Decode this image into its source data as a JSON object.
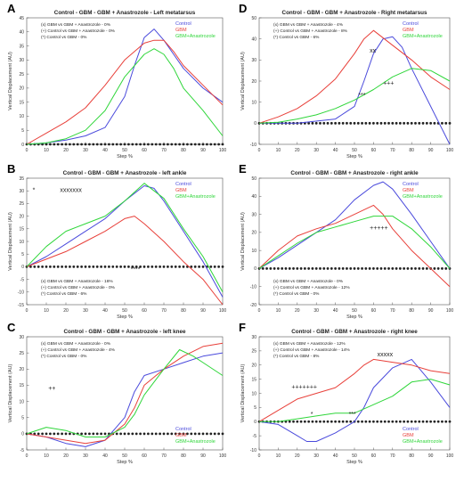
{
  "colors": {
    "Control": "#4a4adc",
    "GBM": "#e8403a",
    "GBM+Anastrozole": "#2fd63a",
    "axis": "#222222",
    "sig": "#222222"
  },
  "chart_data": [
    {
      "panel_letter": "A",
      "type": "line",
      "title": "Control - GBM - GBM + Anastrozole - Left metatarsus",
      "xlabel": "Step %",
      "ylabel": "Vertical Displacement (AU)",
      "xlim": [
        0,
        100
      ],
      "ylim": [
        0,
        45
      ],
      "xticks": [
        0,
        10,
        20,
        30,
        40,
        50,
        60,
        70,
        80,
        90,
        100
      ],
      "yticks": [
        0,
        5,
        10,
        15,
        20,
        25,
        30,
        35,
        40,
        45
      ],
      "legend_position": "top-right",
      "legend": [
        "Control",
        "GBM",
        "GBM+Anastrozole"
      ],
      "stats": [
        "(x) GBM vs GBM + Anastrozole - 0%",
        "(+) Control vs GBM + Anastrozole - 0%",
        "(*) Control vs GBM - 0%"
      ],
      "stats_position": "top-left",
      "series": [
        {
          "name": "Control",
          "x": [
            0,
            10,
            20,
            30,
            40,
            50,
            55,
            60,
            65,
            70,
            75,
            80,
            90,
            100
          ],
          "y": [
            0,
            0.5,
            1.5,
            3,
            6,
            17,
            28,
            38,
            41,
            37,
            32,
            27,
            20,
            15
          ]
        },
        {
          "name": "GBM",
          "x": [
            0,
            10,
            20,
            30,
            40,
            50,
            60,
            65,
            70,
            75,
            80,
            90,
            100
          ],
          "y": [
            0,
            4,
            8,
            13,
            21,
            30,
            36,
            37,
            37,
            33,
            28,
            21,
            14
          ]
        },
        {
          "name": "GBM+Anastrozole",
          "x": [
            0,
            10,
            20,
            30,
            40,
            50,
            60,
            65,
            70,
            75,
            80,
            90,
            100
          ],
          "y": [
            0,
            0.5,
            2,
            5,
            12,
            24,
            32,
            34,
            32,
            27,
            20,
            12,
            3
          ]
        }
      ],
      "annotations": [],
      "sig_row": 0
    },
    {
      "panel_letter": "B",
      "type": "line",
      "title": "Control - GBM - GBM + Anastrozole - left ankle",
      "xlabel": "Step %",
      "ylabel": "Vertical Displacement (AU)",
      "xlim": [
        0,
        100
      ],
      "ylim": [
        -15,
        35
      ],
      "xticks": [
        0,
        10,
        20,
        30,
        40,
        50,
        60,
        70,
        80,
        90,
        100
      ],
      "yticks": [
        -15,
        -10,
        -5,
        0,
        5,
        10,
        15,
        20,
        25,
        30,
        35
      ],
      "legend_position": "top-right",
      "legend": [
        "Control",
        "GBM",
        "GBM+Anastrozole"
      ],
      "stats": [
        "(x) GBM vs GBM + Anastrozole - 16%",
        "(+) Control vs GBM + Anastrozole - 0%",
        "(*) Control vs GBM - 6%"
      ],
      "stats_position": "bottom-left",
      "series": [
        {
          "name": "Control",
          "x": [
            0,
            10,
            20,
            30,
            40,
            50,
            60,
            65,
            70,
            80,
            90,
            100
          ],
          "y": [
            0,
            4,
            9,
            14,
            19,
            26,
            32,
            31,
            26,
            14,
            2,
            -12
          ]
        },
        {
          "name": "GBM",
          "x": [
            0,
            10,
            20,
            30,
            40,
            50,
            55,
            60,
            70,
            80,
            90,
            100
          ],
          "y": [
            0,
            3,
            6,
            10,
            14,
            19,
            20,
            17,
            10,
            2,
            -5,
            -15
          ]
        },
        {
          "name": "GBM+Anastrozole",
          "x": [
            0,
            10,
            20,
            30,
            40,
            50,
            60,
            70,
            80,
            90,
            100
          ],
          "y": [
            0,
            8,
            14,
            17,
            20,
            26,
            33,
            27,
            15,
            4,
            -10
          ]
        }
      ],
      "annotations": [
        {
          "text": "*",
          "x": 3,
          "y": 29.5
        },
        {
          "text": "xxxxxxx",
          "x": 17,
          "y": 29.5
        },
        {
          "text": "****",
          "x": 53,
          "y": -1.8
        }
      ],
      "sig_row": 0
    },
    {
      "panel_letter": "C",
      "type": "line",
      "title": "Control - GBM - GBM + Anastrozole - left knee",
      "xlabel": "Step %",
      "ylabel": "Vertical Displacement (AU)",
      "xlim": [
        0,
        100
      ],
      "ylim": [
        -5,
        30
      ],
      "xticks": [
        0,
        10,
        20,
        30,
        40,
        50,
        60,
        70,
        80,
        90,
        100
      ],
      "yticks": [
        -5,
        0,
        5,
        10,
        15,
        20,
        25,
        30
      ],
      "legend_position": "bottom-right",
      "legend": [
        "Control",
        "GBM",
        "GBM+Anastrozole"
      ],
      "stats": [
        "(x) GBM vs GBM + Anastrozole - 0%",
        "(+) Control vs GBM + Anastrozole - 4%",
        "(*) Control vs GBM - 0%"
      ],
      "stats_position": "top-left",
      "series": [
        {
          "name": "Control",
          "x": [
            0,
            10,
            20,
            30,
            40,
            50,
            55,
            60,
            70,
            80,
            90,
            100
          ],
          "y": [
            0,
            -1,
            -3,
            -4,
            -2,
            5,
            13,
            18,
            20,
            22,
            24,
            25
          ]
        },
        {
          "name": "GBM",
          "x": [
            0,
            10,
            20,
            30,
            40,
            50,
            55,
            60,
            70,
            80,
            90,
            100
          ],
          "y": [
            0,
            -1,
            -2,
            -3,
            -2,
            3,
            8,
            15,
            20,
            24,
            27,
            28
          ]
        },
        {
          "name": "GBM+Anastrozole",
          "x": [
            0,
            10,
            20,
            30,
            40,
            50,
            55,
            60,
            70,
            78,
            85,
            90,
            100
          ],
          "y": [
            0,
            2,
            1,
            -1,
            -1,
            2,
            6,
            12,
            20,
            26,
            24,
            22,
            18
          ]
        }
      ],
      "annotations": [
        {
          "text": "++",
          "x": 11,
          "y": 13.5
        }
      ],
      "sig_row": 0
    },
    {
      "panel_letter": "D",
      "type": "line",
      "title": "Control - GBM - GBM + Anastrozole - Right metatarsus",
      "xlabel": "Step %",
      "ylabel": "Vertical Displacement (AU)",
      "xlim": [
        0,
        100
      ],
      "ylim": [
        -10,
        50
      ],
      "xticks": [
        0,
        10,
        20,
        30,
        40,
        50,
        60,
        70,
        80,
        90,
        100
      ],
      "yticks": [
        -10,
        0,
        10,
        20,
        30,
        40,
        50
      ],
      "legend_position": "top-right",
      "legend": [
        "Control",
        "GBM",
        "GBM+Anastrozole"
      ],
      "stats": [
        "(x) GBM vs GBM + Anastrozole - 4%",
        "(+) Control vs GBM + Anastrozole - 8%",
        "(*) Control vs GBM - 6%"
      ],
      "stats_position": "top-left",
      "series": [
        {
          "name": "Control",
          "x": [
            0,
            20,
            40,
            50,
            55,
            60,
            65,
            70,
            75,
            80,
            90,
            100
          ],
          "y": [
            0,
            0,
            2,
            8,
            20,
            33,
            40,
            41,
            36,
            26,
            8,
            -10
          ]
        },
        {
          "name": "GBM",
          "x": [
            0,
            10,
            20,
            30,
            40,
            50,
            55,
            60,
            70,
            80,
            90,
            100
          ],
          "y": [
            0,
            3,
            7,
            13,
            21,
            33,
            40,
            44,
            37,
            30,
            22,
            16
          ]
        },
        {
          "name": "GBM+Anastrozole",
          "x": [
            0,
            10,
            20,
            30,
            40,
            50,
            60,
            70,
            80,
            90,
            100
          ],
          "y": [
            0,
            0.5,
            2,
            4,
            7,
            11,
            16,
            22,
            26,
            25,
            20
          ]
        }
      ],
      "annotations": [
        {
          "text": "xx",
          "x": 58,
          "y": 33.5
        },
        {
          "text": "+++",
          "x": 65,
          "y": 18
        },
        {
          "text": "***",
          "x": 52,
          "y": 12.5
        }
      ],
      "sig_row": 0
    },
    {
      "panel_letter": "E",
      "type": "line",
      "title": "Control - GBM - GBM + Anastrozole - right ankle",
      "xlabel": "Step %",
      "ylabel": "Vertical Displacement (AU)",
      "xlim": [
        0,
        100
      ],
      "ylim": [
        -20,
        50
      ],
      "xticks": [
        0,
        10,
        20,
        30,
        40,
        50,
        60,
        70,
        80,
        90,
        100
      ],
      "yticks": [
        -20,
        -10,
        0,
        10,
        20,
        30,
        40,
        50
      ],
      "legend_position": "top-right",
      "legend": [
        "Control",
        "GBM",
        "GBM+Anastrozole"
      ],
      "stats": [
        "(x) GBM vs GBM + Anastrozole - 0%",
        "(+) Control vs GBM + Anastrozole - 12%",
        "(*) Control vs GBM - 0%"
      ],
      "stats_position": "bottom-left",
      "series": [
        {
          "name": "Control",
          "x": [
            0,
            10,
            20,
            30,
            40,
            50,
            60,
            65,
            70,
            80,
            90,
            100
          ],
          "y": [
            0,
            6,
            13,
            20,
            27,
            38,
            46,
            48,
            44,
            30,
            15,
            0
          ]
        },
        {
          "name": "GBM",
          "x": [
            0,
            10,
            20,
            30,
            40,
            50,
            60,
            65,
            70,
            80,
            90,
            100
          ],
          "y": [
            0,
            10,
            18,
            22,
            25,
            30,
            35,
            30,
            22,
            10,
            0,
            -10
          ]
        },
        {
          "name": "GBM+Anastrozole",
          "x": [
            0,
            10,
            20,
            30,
            40,
            50,
            60,
            70,
            80,
            90,
            100
          ],
          "y": [
            0,
            7,
            14,
            20,
            23,
            26,
            29,
            29,
            22,
            12,
            0
          ]
        }
      ],
      "annotations": [
        {
          "text": "+++++",
          "x": 58,
          "y": 21.5
        }
      ],
      "sig_row": 0
    },
    {
      "panel_letter": "F",
      "type": "line",
      "title": "Control - GBM - GBM + Anastrozole - right knee",
      "xlabel": "Step %",
      "ylabel": "Vertical Displacement (AU)",
      "xlim": [
        0,
        100
      ],
      "ylim": [
        -10,
        30
      ],
      "xticks": [
        0,
        10,
        20,
        30,
        40,
        50,
        60,
        70,
        80,
        90,
        100
      ],
      "yticks": [
        -10,
        -5,
        0,
        5,
        10,
        15,
        20,
        25,
        30
      ],
      "legend_position": "bottom-right",
      "legend": [
        "Control",
        "GBM",
        "GBM+Anastrozole"
      ],
      "stats": [
        "(x) GBM vs GBM + Anastrozole - 12%",
        "(+) Control vs GBM + Anastrozole - 14%",
        "(*) Control vs GBM - 8%"
      ],
      "stats_position": "top-left",
      "series": [
        {
          "name": "Control",
          "x": [
            0,
            10,
            20,
            25,
            30,
            40,
            50,
            55,
            60,
            70,
            80,
            90,
            100
          ],
          "y": [
            0,
            -1,
            -5,
            -7,
            -7,
            -4,
            0,
            5,
            12,
            19,
            22,
            14,
            5
          ]
        },
        {
          "name": "GBM",
          "x": [
            0,
            10,
            20,
            30,
            40,
            50,
            55,
            60,
            70,
            80,
            90,
            100
          ],
          "y": [
            0,
            4,
            8,
            10,
            12,
            17,
            20,
            22,
            21,
            20,
            18,
            17
          ]
        },
        {
          "name": "GBM+Anastrozole",
          "x": [
            0,
            10,
            20,
            30,
            40,
            50,
            60,
            70,
            80,
            90,
            100
          ],
          "y": [
            0,
            0,
            1,
            2,
            3,
            3,
            6,
            9,
            14,
            15,
            13
          ]
        }
      ],
      "annotations": [
        {
          "text": "xxxxx",
          "x": 62,
          "y": 23
        },
        {
          "text": "+++++++",
          "x": 17,
          "y": 11.5
        },
        {
          "text": "*",
          "x": 27,
          "y": 2
        },
        {
          "text": "***",
          "x": 47,
          "y": 2
        }
      ],
      "sig_row": 0
    }
  ]
}
